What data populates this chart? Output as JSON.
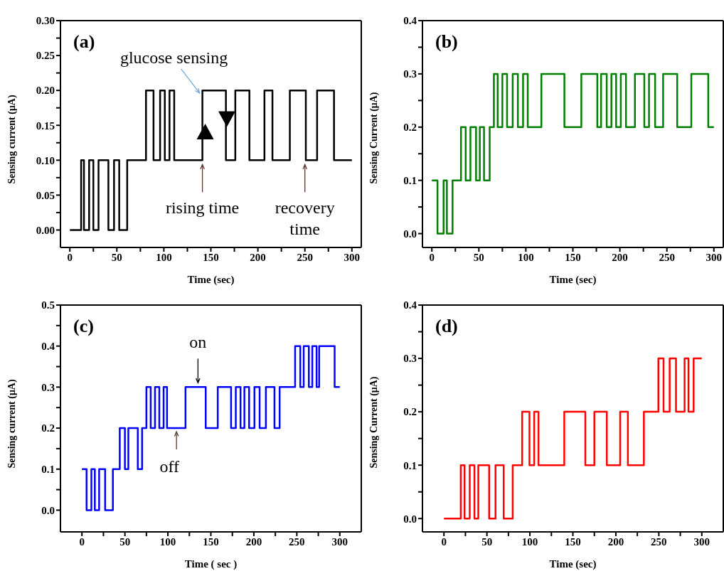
{
  "chart_data": [
    {
      "type": "step",
      "xlabel": "Time (sec)",
      "ylabel": "Sensing current (μA)",
      "xlim": [
        -10,
        310
      ],
      "ylim": [
        -0.025,
        0.3
      ],
      "xticks": [
        0,
        {
          "value": 25,
          "label": null
        },
        50,
        {
          "value": 75,
          "label": null
        },
        100,
        {
          "value": 125,
          "label": null
        },
        150,
        {
          "value": 175,
          "label": null
        },
        200,
        {
          "value": 225,
          "label": null
        },
        250,
        {
          "value": 275,
          "label": null
        },
        300
      ],
      "yticks": [
        {
          "value": 0,
          "label": "0.00"
        },
        {
          "value": 0.025,
          "label": null
        },
        {
          "value": 0.05,
          "label": "0.05"
        },
        {
          "value": 0.075,
          "label": null
        },
        {
          "value": 0.1,
          "label": "0.10"
        },
        {
          "value": 0.125,
          "label": null
        },
        {
          "value": 0.15,
          "label": "0.15"
        },
        {
          "value": 0.175,
          "label": null
        },
        {
          "value": 0.2,
          "label": "0.20"
        },
        {
          "value": 0.225,
          "label": null
        },
        {
          "value": 0.25,
          "label": "0.25"
        },
        {
          "value": 0.275,
          "label": null
        },
        {
          "value": 0.3,
          "label": "0.30"
        }
      ],
      "x": [
        0,
        12,
        15,
        20.5,
        25,
        30.5,
        41,
        47,
        52.5,
        61,
        81,
        89,
        96,
        101,
        106,
        111,
        141,
        166,
        176,
        191,
        207,
        215.5,
        234,
        251,
        263,
        281,
        300
      ],
      "series": [
        {
          "color": "#000000",
          "values": [
            0,
            0.1,
            0,
            0.1,
            0,
            0.1,
            0,
            0.1,
            0,
            0.1,
            0.2,
            0.1,
            0.2,
            0.1,
            0.2,
            0.1,
            0.2,
            0.1,
            0.2,
            0.1,
            0.2,
            0.1,
            0.2,
            0.1,
            0.2,
            0.1,
            0.1
          ]
        }
      ],
      "annotations": [
        "(a)",
        {
          "text": "glucose sensing",
          "x": 141,
          "y": 0.19
        },
        {
          "text": "rising time",
          "x": 141,
          "y": 0.1
        },
        {
          "text": "recovery time",
          "x": 250,
          "y": 0.1
        }
      ]
    },
    {
      "type": "step",
      "xlabel": "Time (sec)",
      "ylabel": "Sensing Current (μA)",
      "xlim": [
        -10,
        310
      ],
      "ylim": [
        -0.026,
        0.4
      ],
      "xticks": [
        0,
        {
          "value": 25,
          "label": null
        },
        50,
        {
          "value": 75,
          "label": null
        },
        100,
        {
          "value": 125,
          "label": null
        },
        150,
        {
          "value": 175,
          "label": null
        },
        200,
        {
          "value": 225,
          "label": null
        },
        250,
        {
          "value": 275,
          "label": null
        },
        300
      ],
      "yticks": [
        {
          "value": 0,
          "label": "0.0"
        },
        {
          "value": 0.05,
          "label": null
        },
        0.1,
        {
          "value": 0.15,
          "label": null
        },
        0.2,
        {
          "value": 0.25,
          "label": null
        },
        0.3,
        {
          "value": 0.35,
          "label": null
        },
        0.4
      ],
      "x": [
        0,
        6,
        12.5,
        16,
        22,
        31,
        36,
        41,
        47,
        51,
        55.5,
        61.5,
        66,
        70,
        75,
        80,
        86,
        91.5,
        97,
        102,
        116.5,
        141,
        159,
        176,
        180,
        186,
        191,
        196,
        201,
        206.5,
        216,
        226,
        231,
        237.5,
        246,
        261,
        276,
        294,
        300
      ],
      "series": [
        {
          "color": "#008000",
          "values": [
            0.1,
            0,
            0.1,
            0,
            0.1,
            0.2,
            0.1,
            0.2,
            0.1,
            0.2,
            0.1,
            0.2,
            0.3,
            0.2,
            0.3,
            0.2,
            0.3,
            0.2,
            0.3,
            0.2,
            0.3,
            0.2,
            0.3,
            0.2,
            0.3,
            0.2,
            0.3,
            0.2,
            0.3,
            0.2,
            0.3,
            0.2,
            0.3,
            0.2,
            0.3,
            0.2,
            0.3,
            0.2,
            0.2
          ]
        }
      ],
      "annotations": [
        "(b)"
      ]
    },
    {
      "type": "step",
      "xlabel": "Time ( sec )",
      "ylabel": "Sensing current (μA)",
      "xlim": [
        -25,
        325
      ],
      "ylim": [
        -0.053,
        0.5
      ],
      "xticks": [
        0,
        {
          "value": 25,
          "label": null
        },
        50,
        {
          "value": 75,
          "label": null
        },
        100,
        {
          "value": 125,
          "label": null
        },
        150,
        {
          "value": 175,
          "label": null
        },
        200,
        {
          "value": 225,
          "label": null
        },
        250,
        {
          "value": 275,
          "label": null
        },
        300
      ],
      "yticks": [
        {
          "value": 0,
          "label": "0.0"
        },
        {
          "value": 0.05,
          "label": null
        },
        0.1,
        {
          "value": 0.15,
          "label": null
        },
        0.2,
        {
          "value": 0.25,
          "label": null
        },
        0.3,
        {
          "value": 0.35,
          "label": null
        },
        0.4,
        {
          "value": 0.45,
          "label": null
        },
        0.5
      ],
      "x": [
        0,
        5.4,
        11,
        15,
        20,
        27,
        36,
        44,
        50,
        54,
        65,
        70,
        75,
        80,
        85,
        90,
        95,
        99,
        120.5,
        144,
        158,
        173.5,
        179,
        184.5,
        189,
        194.5,
        200.7,
        206.7,
        214,
        224,
        230,
        248,
        254,
        258,
        264,
        268,
        273,
        276,
        294,
        300
      ],
      "series": [
        {
          "color": "#0000ff",
          "values": [
            0.1,
            0,
            0.1,
            0,
            0.1,
            0,
            0.1,
            0.2,
            0.1,
            0.2,
            0.1,
            0.2,
            0.3,
            0.2,
            0.3,
            0.2,
            0.3,
            0.2,
            0.3,
            0.2,
            0.3,
            0.2,
            0.3,
            0.2,
            0.3,
            0.2,
            0.3,
            0.2,
            0.3,
            0.2,
            0.3,
            0.4,
            0.3,
            0.4,
            0.3,
            0.4,
            0.3,
            0.4,
            0.3,
            0.3
          ]
        }
      ],
      "annotations": [
        "(c)",
        {
          "text": "on",
          "x": 135,
          "y": 0.3
        },
        {
          "text": "off",
          "x": 110,
          "y": 0.2
        }
      ]
    },
    {
      "type": "step",
      "xlabel": "Time (sec)",
      "ylabel": "Sensing Current (μA)",
      "xlim": [
        -25,
        325
      ],
      "ylim": [
        -0.025,
        0.4
      ],
      "xticks": [
        0,
        {
          "value": 25,
          "label": null
        },
        50,
        {
          "value": 75,
          "label": null
        },
        100,
        {
          "value": 125,
          "label": null
        },
        150,
        {
          "value": 175,
          "label": null
        },
        200,
        {
          "value": 225,
          "label": null
        },
        250,
        {
          "value": 275,
          "label": null
        },
        300
      ],
      "yticks": [
        {
          "value": 0,
          "label": "0.0"
        },
        {
          "value": 0.05,
          "label": null
        },
        0.1,
        {
          "value": 0.15,
          "label": null
        },
        0.2,
        {
          "value": 0.25,
          "label": null
        },
        0.3,
        {
          "value": 0.35,
          "label": null
        },
        0.4
      ],
      "x": [
        0,
        19.6,
        24,
        30,
        35.5,
        40,
        52.6,
        60,
        69.5,
        80,
        91,
        99.5,
        105,
        110,
        140,
        164.5,
        175,
        189.5,
        205,
        214,
        232.6,
        249.5,
        255.5,
        262.6,
        270,
        280,
        284.5,
        290.5,
        300
      ],
      "series": [
        {
          "color": "#ff0000",
          "values": [
            0,
            0.1,
            0,
            0.1,
            0,
            0.1,
            0,
            0.1,
            0,
            0.1,
            0.2,
            0.1,
            0.2,
            0.1,
            0.2,
            0.1,
            0.2,
            0.1,
            0.2,
            0.1,
            0.2,
            0.3,
            0.2,
            0.3,
            0.2,
            0.3,
            0.2,
            0.3,
            0.3
          ]
        }
      ],
      "annotations": [
        "(d)"
      ]
    }
  ]
}
